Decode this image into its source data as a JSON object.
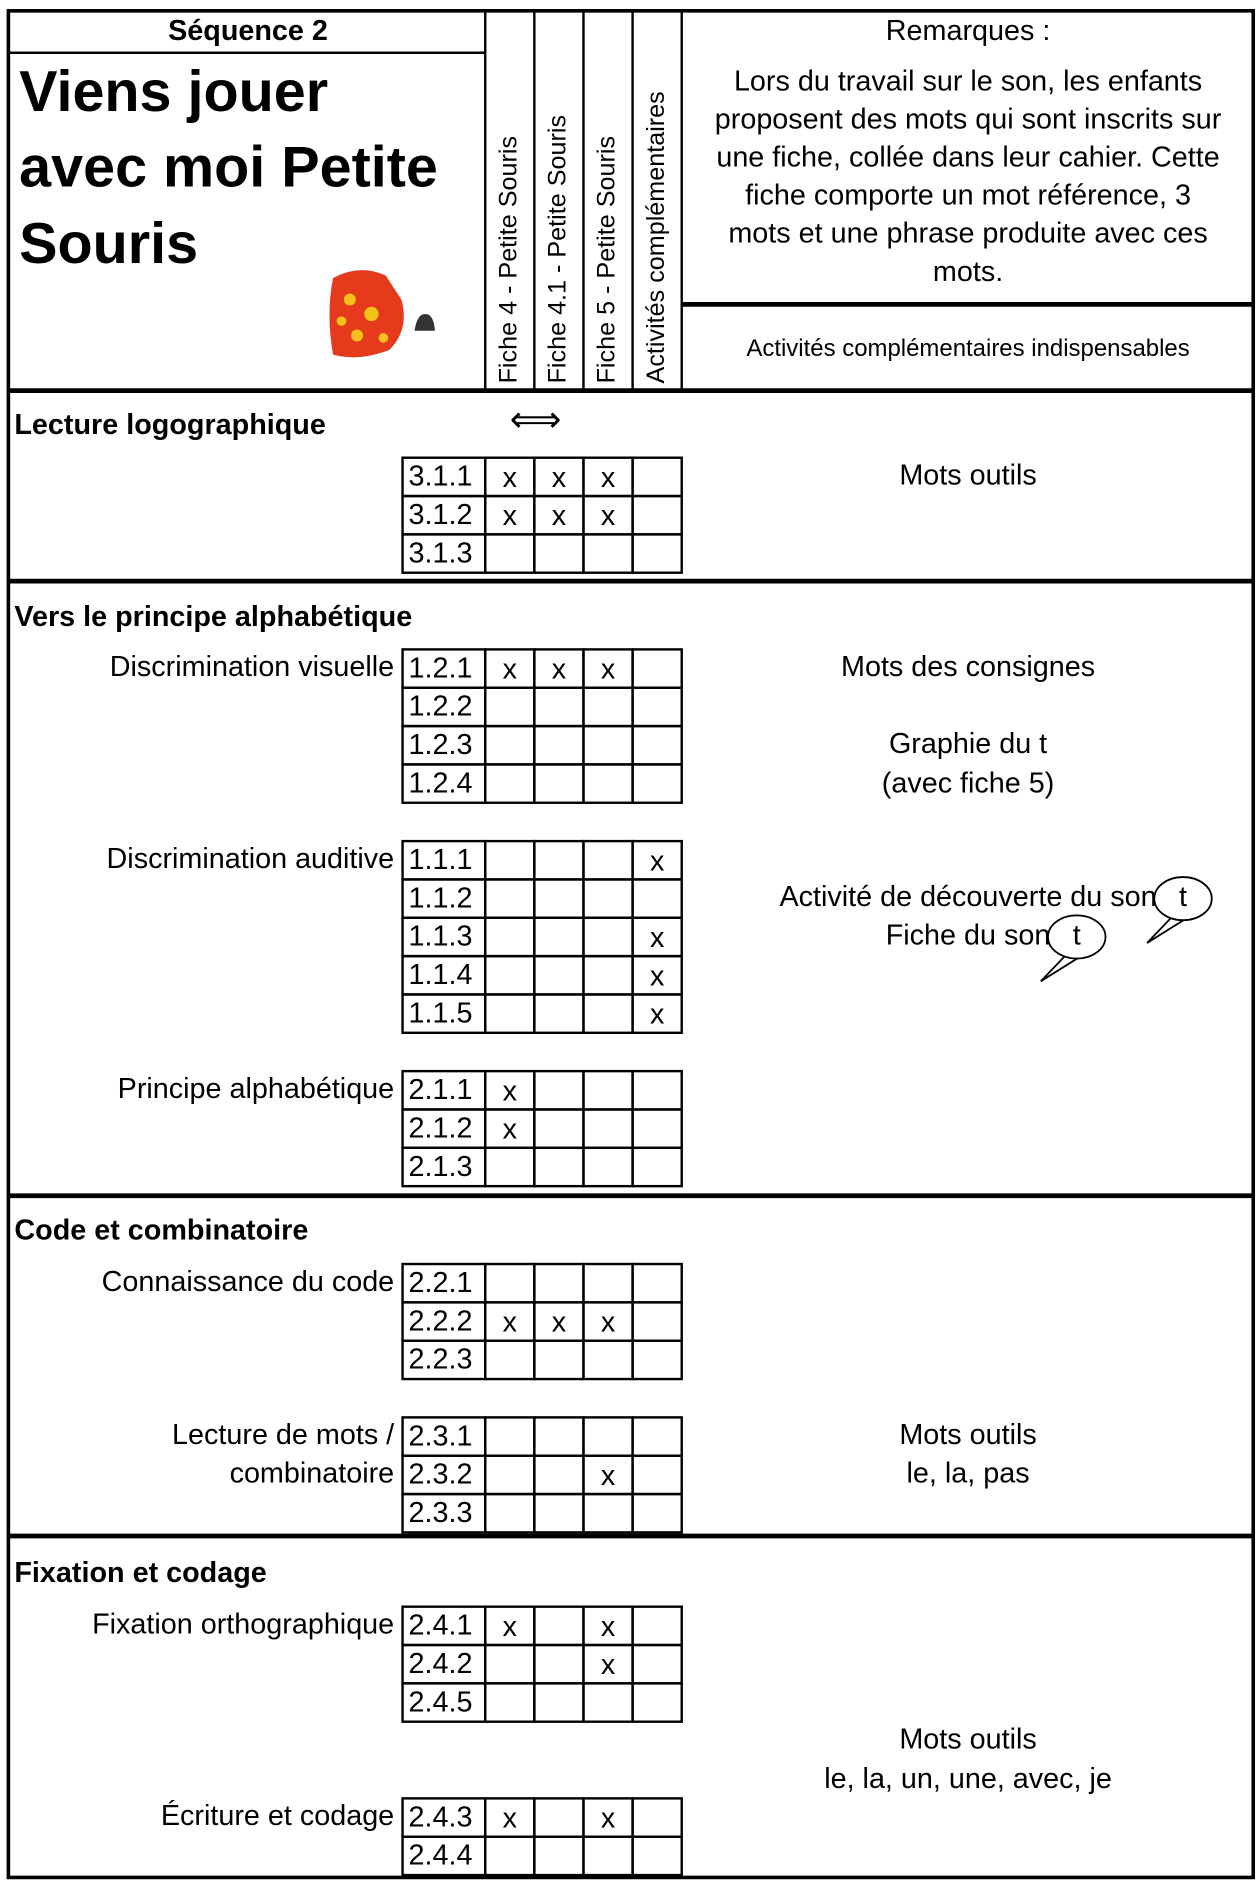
{
  "header": {
    "sequence": "Séquence 2",
    "title_lines": [
      "Viens jouer",
      "avec moi Petite",
      "Souris"
    ],
    "columns": [
      "Fiche 4 - Petite Souris",
      "Fiche 4.1 - Petite Souris",
      "Fiche 5 - Petite Souris",
      "Activités complémentaires"
    ],
    "remarks_title": "Remarques :",
    "remarks_lines": [
      "Lors du travail sur le son, les enfants",
      "proposent des mots qui sont inscrits sur",
      "une fiche, collée dans leur cahier. Cette",
      "fiche comporte un mot référence, 3",
      "mots et une phrase produite avec ces",
      "mots."
    ],
    "complement": "Activités complémentaires indispensables"
  },
  "sections": [
    {
      "title": "Lecture  logographique",
      "arrow": "⟺",
      "groups": [
        {
          "rows": [
            {
              "code": "3.1.1",
              "cells": [
                "x",
                "x",
                "x",
                null
              ]
            },
            {
              "code": "3.1.2",
              "cells": [
                "x",
                "x",
                "x",
                null
              ]
            },
            {
              "code": "3.1.3",
              "cells": [
                null,
                null,
                null,
                null
              ]
            }
          ]
        }
      ],
      "notes": [
        {
          "text": "Mots outils"
        }
      ]
    },
    {
      "title": "Vers le principe alphabétique",
      "groups": [
        {
          "label_lines": [
            "Discrimination visuelle"
          ],
          "rows": [
            {
              "code": "1.2.1",
              "cells": [
                "x",
                "x",
                "x",
                null
              ]
            },
            {
              "code": "1.2.2",
              "cells": [
                null,
                null,
                null,
                null
              ]
            },
            {
              "code": "1.2.3",
              "cells": [
                null,
                null,
                null,
                null
              ]
            },
            {
              "code": "1.2.4",
              "cells": [
                null,
                null,
                null,
                null
              ]
            }
          ]
        },
        {
          "label_lines": [
            "Discrimination auditive"
          ],
          "rows": [
            {
              "code": "1.1.1",
              "cells": [
                null,
                null,
                null,
                "x"
              ]
            },
            {
              "code": "1.1.2",
              "cells": [
                null,
                null,
                null,
                null
              ]
            },
            {
              "code": "1.1.3",
              "cells": [
                null,
                null,
                null,
                "x"
              ]
            },
            {
              "code": "1.1.4",
              "cells": [
                null,
                null,
                null,
                "x"
              ]
            },
            {
              "code": "1.1.5",
              "cells": [
                null,
                null,
                null,
                "x"
              ]
            }
          ]
        },
        {
          "label_lines": [
            "Principe alphabétique"
          ],
          "rows": [
            {
              "code": "2.1.1",
              "cells": [
                "x",
                null,
                null,
                null
              ]
            },
            {
              "code": "2.1.2",
              "cells": [
                "x",
                null,
                null,
                null
              ]
            },
            {
              "code": "2.1.3",
              "cells": [
                null,
                null,
                null,
                null
              ]
            }
          ]
        }
      ],
      "notes": [
        {
          "text": "Mots des consignes"
        },
        {
          "text": "Graphie du t"
        },
        {
          "text": "(avec fiche 5)"
        },
        {
          "text": "Activité de découverte du son",
          "bubble": "t"
        },
        {
          "text": "Fiche du son",
          "bubble": "t"
        }
      ]
    },
    {
      "title": "Code et combinatoire",
      "groups": [
        {
          "label_lines": [
            "Connaissance du code"
          ],
          "rows": [
            {
              "code": "2.2.1",
              "cells": [
                null,
                null,
                null,
                null
              ]
            },
            {
              "code": "2.2.2",
              "cells": [
                "x",
                "x",
                "x",
                null
              ]
            },
            {
              "code": "2.2.3",
              "cells": [
                null,
                null,
                null,
                null
              ]
            }
          ]
        },
        {
          "label_lines": [
            "Lecture de mots /",
            "combinatoire"
          ],
          "rows": [
            {
              "code": "2.3.1",
              "cells": [
                null,
                null,
                null,
                null
              ]
            },
            {
              "code": "2.3.2",
              "cells": [
                null,
                null,
                "x",
                null
              ]
            },
            {
              "code": "2.3.3",
              "cells": [
                null,
                null,
                null,
                null
              ]
            }
          ]
        }
      ],
      "notes": [
        {
          "text": "Mots outils"
        },
        {
          "text": "le, la, pas"
        }
      ]
    },
    {
      "title": "Fixation et codage",
      "groups": [
        {
          "label_lines": [
            "Fixation orthographique"
          ],
          "rows": [
            {
              "code": "2.4.1",
              "cells": [
                "x",
                null,
                "x",
                null
              ]
            },
            {
              "code": "2.4.2",
              "cells": [
                null,
                null,
                "x",
                null
              ]
            },
            {
              "code": "2.4.5",
              "cells": [
                null,
                null,
                null,
                null
              ]
            }
          ]
        },
        {
          "label_lines": [
            "Écriture et codage"
          ],
          "rows": [
            {
              "code": "2.4.3",
              "cells": [
                "x",
                null,
                "x",
                null
              ]
            },
            {
              "code": "2.4.4",
              "cells": [
                null,
                null,
                null,
                null
              ]
            }
          ]
        }
      ],
      "notes": [
        {
          "text": "Mots outils"
        },
        {
          "text": "le, la, un, une, avec, je"
        }
      ]
    }
  ]
}
